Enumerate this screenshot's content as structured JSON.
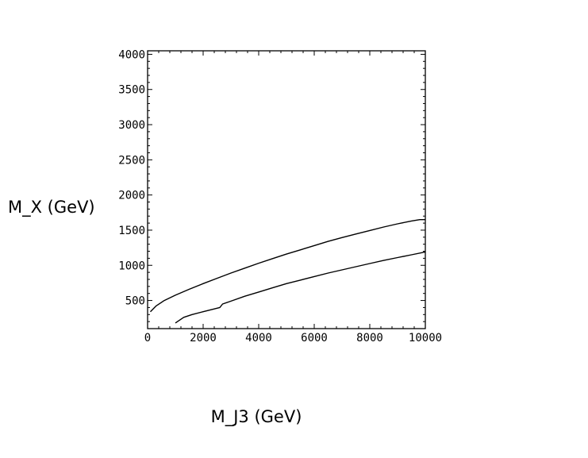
{
  "chart_data": {
    "type": "line",
    "xlabel": "M_J3  (GeV)",
    "ylabel": "M_X (GeV)",
    "xlim": [
      0,
      10000
    ],
    "ylim": [
      100,
      4050
    ],
    "x_ticks": [
      0,
      2000,
      4000,
      6000,
      8000,
      10000
    ],
    "y_ticks": [
      500,
      1000,
      1500,
      2000,
      2500,
      3000,
      3500,
      4000
    ],
    "grid": false,
    "series": [
      {
        "x": [
          100,
          300,
          600,
          1000,
          1500,
          2000,
          2500,
          3000,
          3500,
          4000,
          4500,
          5000,
          5500,
          6000,
          6500,
          7000,
          7500,
          8000,
          8500,
          9000,
          9500,
          9800,
          10000
        ],
        "y": [
          340,
          420,
          500,
          575,
          660,
          740,
          815,
          890,
          960,
          1030,
          1095,
          1160,
          1220,
          1280,
          1340,
          1395,
          1445,
          1495,
          1545,
          1590,
          1630,
          1650,
          1650
        ]
      },
      {
        "x": [
          1000,
          1300,
          1600,
          2000,
          2400,
          2600,
          2700,
          3000,
          3500,
          4000,
          4500,
          5000,
          5500,
          6000,
          6500,
          7000,
          7500,
          8000,
          8500,
          9000,
          9500,
          10000
        ],
        "y": [
          180,
          260,
          300,
          340,
          380,
          400,
          450,
          490,
          560,
          620,
          680,
          740,
          790,
          840,
          890,
          935,
          980,
          1025,
          1070,
          1110,
          1150,
          1190
        ]
      }
    ]
  }
}
